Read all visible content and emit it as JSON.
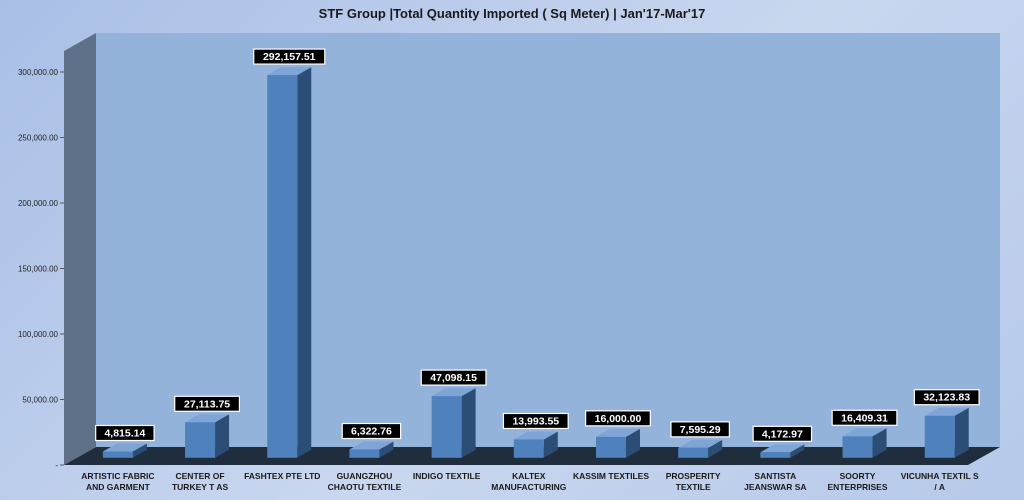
{
  "chart_data": {
    "type": "bar",
    "title": "STF Group |Total Quantity Imported ( Sq Meter) | Jan'17-Mar'17",
    "xlabel": "",
    "ylabel": "",
    "ylim": [
      0,
      300000
    ],
    "yticks": [
      {
        "value": 0,
        "label": "-"
      },
      {
        "value": 50000,
        "label": "50,000.00"
      },
      {
        "value": 100000,
        "label": "100,000.00"
      },
      {
        "value": 150000,
        "label": "150,000.00"
      },
      {
        "value": 200000,
        "label": "200,000.00"
      },
      {
        "value": 250000,
        "label": "250,000.00"
      },
      {
        "value": 300000,
        "label": "300,000.00"
      }
    ],
    "categories": [
      [
        "ARTISTIC FABRIC",
        "AND GARMENT"
      ],
      [
        "CENTER OF",
        "TURKEY  T AS"
      ],
      [
        "FASHTEX PTE LTD"
      ],
      [
        "GUANGZHOU",
        "CHAOTU TEXTILE"
      ],
      [
        "INDIGO TEXTILE"
      ],
      [
        "KALTEX",
        "MANUFACTURING"
      ],
      [
        "KASSIM TEXTILES"
      ],
      [
        "PROSPERITY",
        "TEXTILE"
      ],
      [
        "SANTISTA",
        "JEANSWAR SA"
      ],
      [
        "SOORTY",
        "ENTERPRISES"
      ],
      [
        "VICUNHA TEXTIL S",
        "/ A"
      ]
    ],
    "values": [
      4815.14,
      27113.75,
      292157.51,
      6322.76,
      47098.15,
      13993.55,
      16000.0,
      7595.29,
      4172.97,
      16409.31,
      32123.83
    ],
    "data_labels": [
      "4,815.14",
      "27,113.75",
      "292,157.51",
      "6,322.76",
      "47,098.15",
      "13,993.55",
      "16,000.00",
      "7,595.29",
      "4,172.97",
      "16,409.31",
      "32,123.83"
    ],
    "colors": {
      "bar_front": "#4f81bd",
      "bar_side": "#2c4d75",
      "bar_top": "#7fa4d6",
      "wall": "#94b3da",
      "side_wall": "#5f7188",
      "floor": "#1f2d3d",
      "label_bg": "#000000",
      "label_text": "#ffffff"
    },
    "grid": false,
    "legend": "none"
  }
}
